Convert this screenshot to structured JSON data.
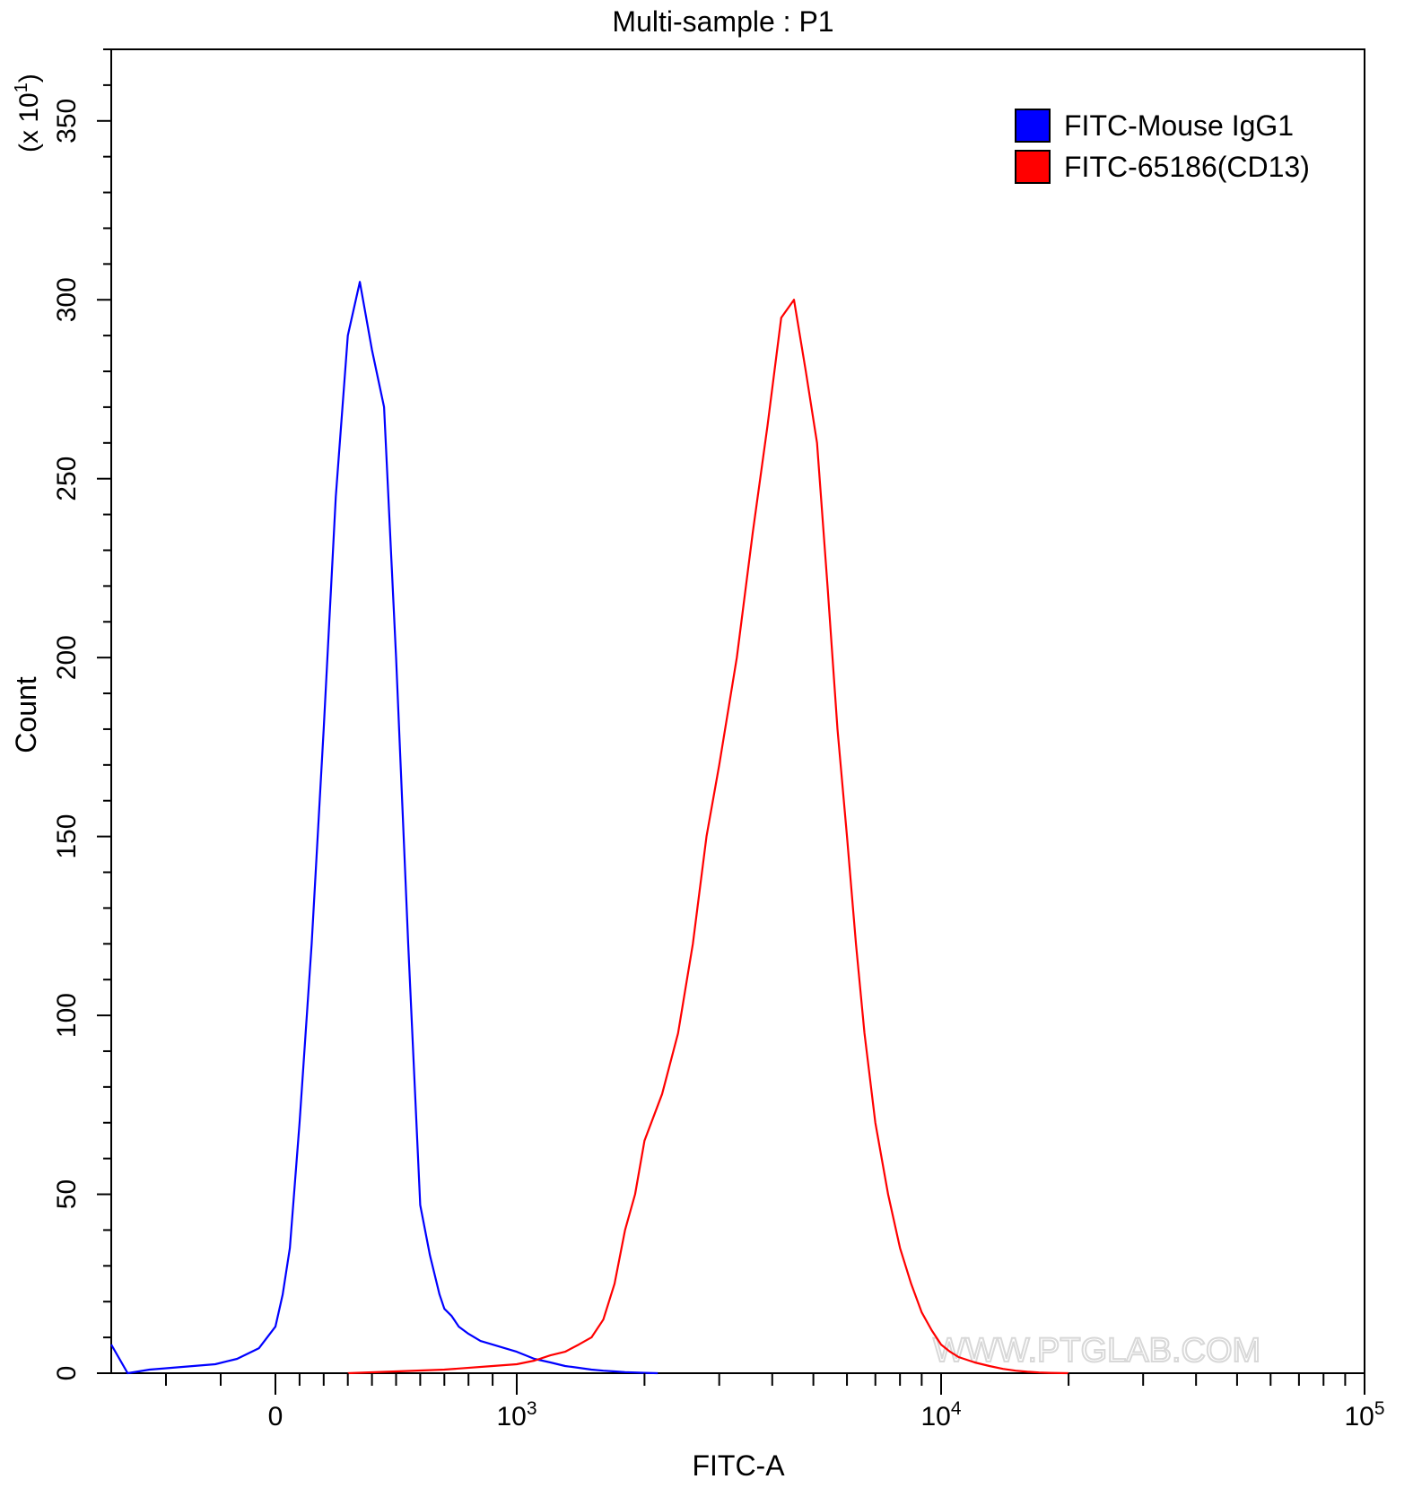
{
  "chart_data": {
    "type": "line",
    "title": "Multi-sample : P1",
    "xlabel": "FITC-A",
    "ylabel": "Count",
    "y_multiplier_label": "(x 10",
    "y_multiplier_exp": "1",
    "y_multiplier_close": ")",
    "xscale": "biexponential",
    "xlim": [
      -300,
      100000
    ],
    "ylim": [
      0,
      3700
    ],
    "x_ticks": [
      {
        "value": 0,
        "base": "0",
        "exp": ""
      },
      {
        "value": 1000,
        "base": "10",
        "exp": "3"
      },
      {
        "value": 10000,
        "base": "10",
        "exp": "4"
      },
      {
        "value": 100000,
        "base": "10",
        "exp": "5"
      }
    ],
    "y_ticks": [
      {
        "value": 0,
        "label": "0"
      },
      {
        "value": 500,
        "label": "50"
      },
      {
        "value": 1000,
        "label": "100"
      },
      {
        "value": 1500,
        "label": "150"
      },
      {
        "value": 2000,
        "label": "200"
      },
      {
        "value": 2500,
        "label": "250"
      },
      {
        "value": 3000,
        "label": "300"
      },
      {
        "value": 3500,
        "label": "350"
      }
    ],
    "grid": false,
    "legend_position": "top-right",
    "series": [
      {
        "name": "FITC-Mouse IgG1",
        "color": "#0000ff",
        "x": [
          -300,
          -270,
          -230,
          -190,
          -150,
          -110,
          -70,
          -30,
          0,
          30,
          60,
          100,
          150,
          200,
          250,
          300,
          350,
          400,
          450,
          500,
          550,
          600,
          640,
          680,
          700,
          730,
          760,
          800,
          850,
          900,
          950,
          1000,
          1050,
          1100,
          1200,
          1300,
          1400,
          1500,
          1600,
          1700,
          1800,
          1900,
          2000,
          2150
        ],
        "y": [
          80,
          0,
          10,
          15,
          20,
          25,
          40,
          70,
          130,
          220,
          350,
          700,
          1200,
          1800,
          2450,
          2900,
          3050,
          2860,
          2700,
          2000,
          1200,
          470,
          330,
          220,
          180,
          160,
          130,
          110,
          90,
          80,
          70,
          60,
          50,
          40,
          30,
          20,
          15,
          10,
          7,
          5,
          3,
          2,
          1,
          0
        ]
      },
      {
        "name": "FITC-65186(CD13)",
        "color": "#ff0000",
        "x": [
          300,
          500,
          700,
          900,
          1000,
          1100,
          1200,
          1300,
          1400,
          1500,
          1600,
          1700,
          1800,
          1900,
          2000,
          2200,
          2400,
          2600,
          2800,
          3000,
          3300,
          3600,
          3900,
          4200,
          4500,
          4800,
          5100,
          5400,
          5700,
          6000,
          6300,
          6600,
          7000,
          7500,
          8000,
          8500,
          9000,
          9500,
          10000,
          10500,
          11000,
          12000,
          13000,
          14000,
          15000,
          16000,
          17000,
          18000,
          20000
        ],
        "y": [
          0,
          5,
          10,
          20,
          25,
          35,
          50,
          60,
          80,
          100,
          150,
          250,
          400,
          500,
          650,
          780,
          950,
          1200,
          1500,
          1700,
          2000,
          2350,
          2650,
          2950,
          3000,
          2800,
          2600,
          2200,
          1800,
          1500,
          1200,
          950,
          700,
          500,
          350,
          250,
          170,
          120,
          80,
          60,
          45,
          30,
          20,
          12,
          7,
          4,
          2,
          1,
          0
        ]
      }
    ]
  },
  "watermark": "WWW.PTGLAB.COM"
}
